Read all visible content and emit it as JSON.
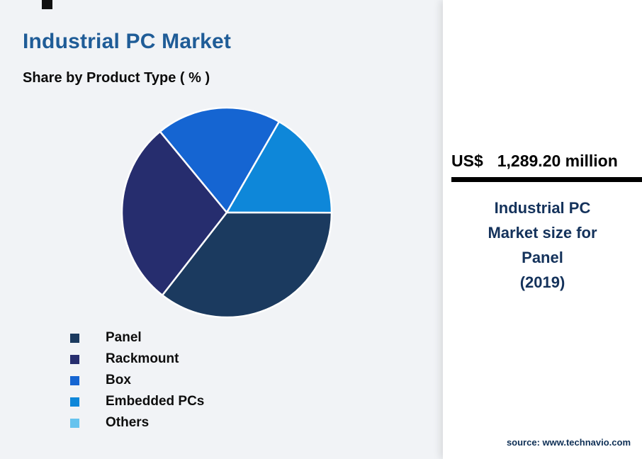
{
  "header": {
    "title": "Industrial PC Market",
    "subtitle": "Share by Product Type ( % )"
  },
  "chart_data": {
    "type": "pie",
    "title": "Industrial PC Market",
    "subtitle": "Share by Product Type ( % )",
    "categories": [
      "Panel",
      "Rackmount",
      "Box",
      "Embedded PCs",
      "Others"
    ],
    "values": [
      35.5,
      28.5,
      19.3,
      16.7,
      0
    ],
    "colors": [
      "#1b3a5f",
      "#262d6e",
      "#1565d2",
      "#0e87d9",
      "#66c3ee"
    ],
    "legend_position": "bottom-left",
    "render": {
      "start_angle_deg": 320.5,
      "draw_order": [
        "Box",
        "Embedded PCs",
        "Panel",
        "Rackmount"
      ]
    }
  },
  "panel": {
    "currency": "US$",
    "value": "1,289.20 million",
    "desc_lines": [
      "Industrial PC",
      "Market size for",
      "Panel",
      "(2019)"
    ],
    "source": "source: www.technavio.com"
  },
  "colors": {
    "background": "#f1f3f6",
    "card": "#ffffff",
    "title_text": "#1f5c97",
    "desc_text": "#14325b",
    "divider": "#000000"
  }
}
